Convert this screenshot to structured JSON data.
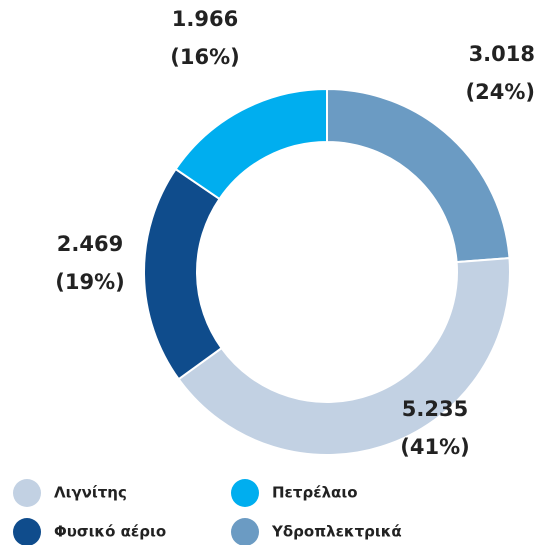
{
  "chart_data": {
    "type": "donut",
    "categories": [
      "Υδροπλεκτρικά",
      "Λιγνίτης",
      "Φυσικό αέριο",
      "Πετρέλαιο"
    ],
    "values": [
      3018,
      5235,
      2469,
      1966
    ],
    "value_labels": [
      "3.018",
      "5.235",
      "2.469",
      "1.966"
    ],
    "percent_labels": [
      "(24%)",
      "(41%)",
      "(19%)",
      "(16%)"
    ],
    "colors": [
      "#6b9bc3",
      "#c2d1e3",
      "#0f4c8c",
      "#00aeef"
    ]
  }
}
